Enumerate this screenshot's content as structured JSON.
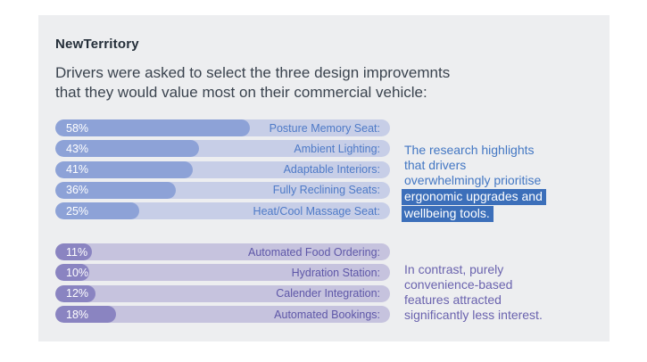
{
  "colors": {
    "page_bg": "#FFFFFF",
    "card_bg": "#EDEEF0",
    "brand_text": "#242E39",
    "title_text": "#3A434E",
    "group1_fill": "#8DA2D7",
    "group1_track": "#C7CEE7",
    "group1_label": "#4E7AC7",
    "group2_fill": "#8A84C1",
    "group2_track": "#C6C3DE",
    "group2_label": "#5E57A8",
    "value_text": "#FFFFFF",
    "note1_text": "#4377C3",
    "note1_highlight_bg": "#3C6FBA",
    "note1_highlight_text": "#FFFFFF",
    "note2_text": "#6A63AE"
  },
  "header": {
    "brand": "NewTerritory"
  },
  "title": {
    "lines": [
      "Drivers were asked to select the three design improvemnts",
      "that they would value most on their commercial vehicle:"
    ]
  },
  "chart_data": {
    "type": "bar",
    "orientation": "horizontal",
    "unit": "%",
    "xlim": [
      0,
      100
    ],
    "grid": false,
    "legend": false,
    "groups": [
      {
        "name": "ergonomic-wellbeing-features",
        "categories": [
          "Posture Memory Seat:",
          "Ambient Lighting:",
          "Adaptable Interiors:",
          "Fully Reclining Seats:",
          "Heat/Cool Massage Seat:"
        ],
        "values": [
          58,
          43,
          41,
          36,
          25
        ]
      },
      {
        "name": "convenience-features",
        "categories": [
          "Automated Food Ordering:",
          "Hydration Station:",
          "Calender Integration:",
          "Automated Bookings:"
        ],
        "values": [
          11,
          10,
          12,
          18
        ]
      }
    ]
  },
  "notes": {
    "note1": {
      "lines": [
        "The research highlights",
        "that drivers",
        "overwhelmingly prioritise"
      ],
      "highlight_lines": [
        "ergonomic upgrades and",
        "wellbeing tools."
      ]
    },
    "note2": {
      "lines": [
        "In contrast, purely",
        "convenience-based",
        "features attracted",
        "significantly less interest."
      ]
    }
  }
}
